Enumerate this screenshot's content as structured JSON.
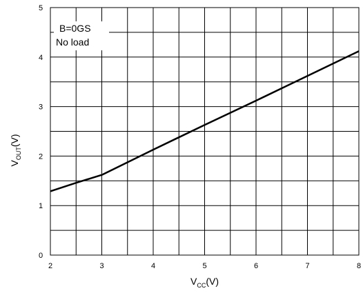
{
  "chart_data": {
    "type": "line",
    "xlabel": {
      "main": "V",
      "sub": "CC",
      "unit": "(V)"
    },
    "ylabel": {
      "main": "V",
      "sub": "OUT",
      "unit": "(V)"
    },
    "xlim": [
      2,
      8
    ],
    "ylim": [
      0,
      5
    ],
    "x_ticks": [
      "2",
      "3",
      "4",
      "5",
      "6",
      "7",
      "8"
    ],
    "y_ticks": [
      "0",
      "1",
      "2",
      "3",
      "4",
      "5"
    ],
    "x_minor_step": 0.5,
    "y_minor_step": 0.5,
    "grid": true,
    "annotation": [
      "B=0GS",
      "No load"
    ],
    "series": [
      {
        "x": [
          2,
          2.5,
          3,
          4,
          5,
          6,
          7,
          8
        ],
        "y": [
          1.29,
          1.46,
          1.62,
          2.13,
          2.63,
          3.12,
          3.62,
          4.12
        ]
      }
    ]
  }
}
